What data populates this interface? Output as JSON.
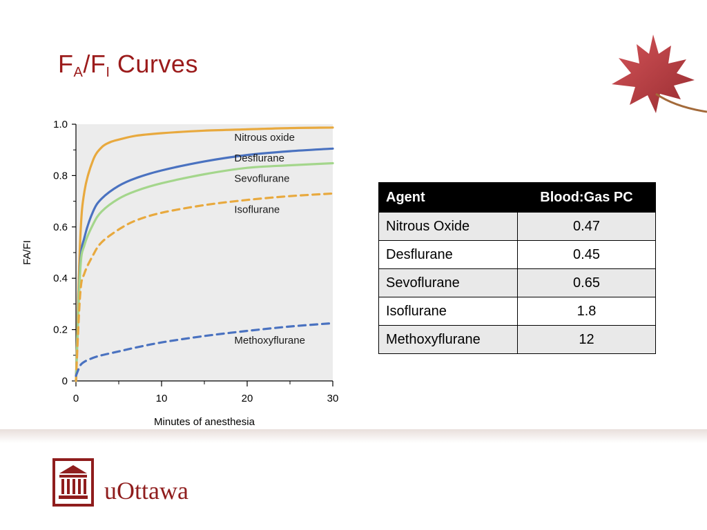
{
  "slide": {
    "title_main": "F",
    "title_sub_a": "A",
    "title_slash": "/F",
    "title_sub_i": "I",
    "title_rest": " Curves",
    "title_color": "#9b1b1b"
  },
  "chart_data": {
    "type": "line",
    "ylabel": "FA/FI",
    "xlabel": "Minutes of anesthesia",
    "xlim": [
      0,
      30
    ],
    "ylim": [
      0,
      1.0
    ],
    "x_ticks": [
      "0",
      "10",
      "20",
      "30"
    ],
    "y_ticks": [
      "0",
      "0.2",
      "0.4",
      "0.6",
      "0.8",
      "1.0"
    ],
    "series": [
      {
        "name": "Nitrous oxide",
        "color": "#e8a93e",
        "style": "solid",
        "x": [
          0,
          0.5,
          1,
          2,
          3,
          4,
          5,
          7,
          10,
          15,
          20,
          25,
          30
        ],
        "y": [
          0,
          0.55,
          0.74,
          0.86,
          0.91,
          0.93,
          0.94,
          0.955,
          0.965,
          0.975,
          0.98,
          0.985,
          0.987
        ]
      },
      {
        "name": "Desflurane",
        "color": "#4a72c0",
        "style": "solid",
        "x": [
          0,
          0.5,
          1,
          2,
          3,
          5,
          7,
          10,
          15,
          20,
          25,
          30
        ],
        "y": [
          0,
          0.45,
          0.56,
          0.66,
          0.71,
          0.76,
          0.79,
          0.82,
          0.855,
          0.88,
          0.895,
          0.905
        ]
      },
      {
        "name": "Sevoflurane",
        "color": "#a4d68c",
        "style": "solid",
        "x": [
          0,
          0.5,
          1,
          2,
          3,
          5,
          7,
          10,
          15,
          20,
          25,
          30
        ],
        "y": [
          0,
          0.43,
          0.53,
          0.61,
          0.66,
          0.71,
          0.74,
          0.77,
          0.805,
          0.83,
          0.84,
          0.848
        ]
      },
      {
        "name": "Isoflurane",
        "color": "#e8a93e",
        "style": "dashed",
        "x": [
          0,
          0.5,
          1,
          2,
          3,
          5,
          7,
          10,
          15,
          20,
          25,
          30
        ],
        "y": [
          0,
          0.34,
          0.42,
          0.49,
          0.54,
          0.59,
          0.625,
          0.655,
          0.685,
          0.705,
          0.72,
          0.73
        ]
      },
      {
        "name": "Methoxyflurane",
        "color": "#4a72c0",
        "style": "dashed",
        "x": [
          0,
          0.5,
          1,
          2,
          3,
          5,
          7,
          10,
          15,
          20,
          25,
          30
        ],
        "y": [
          0.02,
          0.06,
          0.075,
          0.09,
          0.1,
          0.115,
          0.13,
          0.15,
          0.175,
          0.195,
          0.212,
          0.225
        ]
      }
    ],
    "plot_background": "#ececec"
  },
  "table": {
    "headers": [
      "Agent",
      "Blood:Gas PC"
    ],
    "rows": [
      [
        "Nitrous Oxide",
        "0.47"
      ],
      [
        "Desflurane",
        "0.45"
      ],
      [
        "Sevoflurane",
        "0.65"
      ],
      [
        "Isoflurane",
        "1.8"
      ],
      [
        "Methoxyflurane",
        "12"
      ]
    ]
  },
  "footer": {
    "brand": "uOttawa",
    "logo_icon": "university-building-icon",
    "brand_color": "#8f1d1d"
  },
  "decoration": {
    "leaf_icon": "maple-leaf-icon",
    "leaf_color": "#b5242a"
  }
}
